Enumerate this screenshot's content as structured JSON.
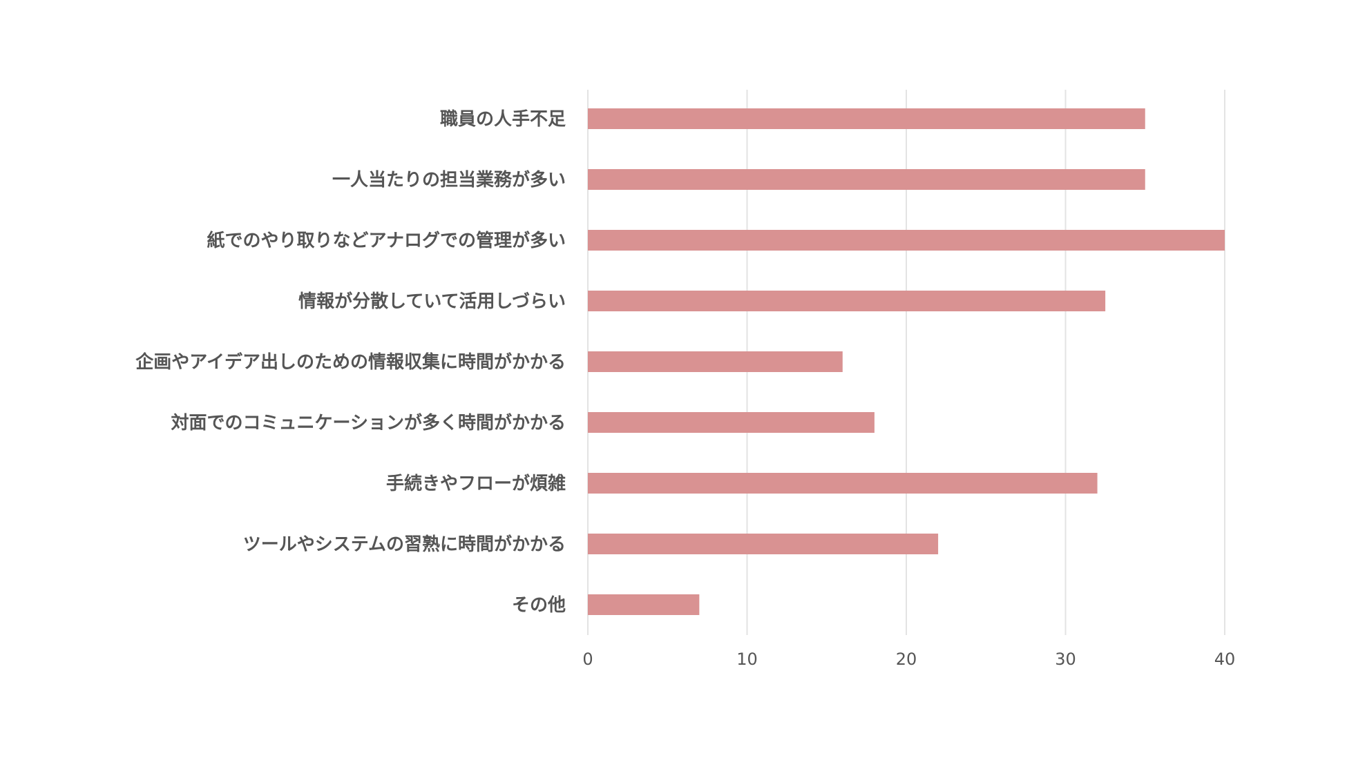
{
  "chart_data": {
    "type": "bar",
    "orientation": "horizontal",
    "categories": [
      "職員の人手不足",
      "一人当たりの担当業務が多い",
      "紙でのやり取りなどアナログでの管理が多い",
      "情報が分散していて活用しづらい",
      "企画やアイデア出しのための情報収集に時間がかかる",
      "対面でのコミュニケーションが多く時間がかかる",
      "手続きやフローが煩雑",
      "ツールやシステムの習熟に時間がかかる",
      "その他"
    ],
    "values": [
      35,
      35,
      40,
      32.5,
      16,
      18,
      32,
      22,
      7
    ],
    "xlim": [
      0,
      40
    ],
    "xticks": [
      "0",
      "10",
      "20",
      "30",
      "40"
    ],
    "grid": true,
    "bar_color": "#d99292",
    "grid_color": "#e3e3e3",
    "text_color": "#555555"
  }
}
